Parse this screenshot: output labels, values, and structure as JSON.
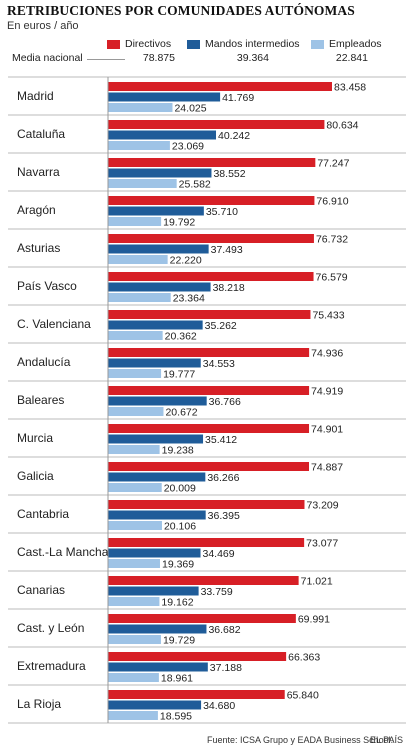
{
  "header": {
    "title": "RETRIBUCIONES POR COMUNIDADES AUTÓNOMAS",
    "subtitle": "En euros / año"
  },
  "legend": [
    {
      "name": "Directivos",
      "color": "#d71f26"
    },
    {
      "name": "Mandos intermedios",
      "color": "#1f5c99"
    },
    {
      "name": "Empleados",
      "color": "#9ec3e6"
    }
  ],
  "media_nacional": {
    "label": "Media nacional",
    "values": [
      "78.875",
      "39.364",
      "22.841"
    ]
  },
  "chart_data": {
    "type": "bar",
    "orientation": "horizontal",
    "title": "RETRIBUCIONES POR COMUNIDADES AUTÓNOMAS",
    "subtitle": "En euros / año",
    "categories": [
      "Madrid",
      "Cataluña",
      "Navarra",
      "Aragón",
      "Asturias",
      "País Vasco",
      "C. Valenciana",
      "Andalucía",
      "Baleares",
      "Murcia",
      "Galicia",
      "Cantabria",
      "Cast.-La Mancha",
      "Canarias",
      "Cast. y León",
      "Extremadura",
      "La Rioja"
    ],
    "series": [
      {
        "name": "Directivos",
        "color": "#d71f26",
        "values": [
          83458,
          80634,
          77247,
          76910,
          76732,
          76579,
          75433,
          74936,
          74919,
          74901,
          74887,
          73209,
          73077,
          71021,
          69991,
          66363,
          65840
        ],
        "labels": [
          "83.458",
          "80.634",
          "77.247",
          "76.910",
          "76.732",
          "76.579",
          "75.433",
          "74.936",
          "74.919",
          "74.901",
          "74.887",
          "73.209",
          "73.077",
          "71.021",
          "69.991",
          "66.363",
          "65.840"
        ]
      },
      {
        "name": "Mandos intermedios",
        "color": "#1f5c99",
        "values": [
          41769,
          40242,
          38552,
          35710,
          37493,
          38218,
          35262,
          34553,
          36766,
          35412,
          36266,
          36395,
          34469,
          33759,
          36682,
          37188,
          34680
        ],
        "labels": [
          "41.769",
          "40.242",
          "38.552",
          "35.710",
          "37.493",
          "38.218",
          "35.262",
          "34.553",
          "36.766",
          "35.412",
          "36.266",
          "36.395",
          "34.469",
          "33.759",
          "36.682",
          "37.188",
          "34.680"
        ]
      },
      {
        "name": "Empleados",
        "color": "#9ec3e6",
        "values": [
          24025,
          23069,
          25582,
          19792,
          22220,
          23364,
          20362,
          19777,
          20672,
          19238,
          20009,
          20106,
          19369,
          19162,
          19729,
          18961,
          18595
        ],
        "labels": [
          "24.025",
          "23.069",
          "25.582",
          "19.792",
          "22.220",
          "23.364",
          "20.362",
          "19.777",
          "20.672",
          "19.238",
          "20.009",
          "20.106",
          "19.369",
          "19.162",
          "19.729",
          "18.961",
          "18.595"
        ]
      }
    ],
    "xlim": [
      0,
      83458
    ],
    "grid": false,
    "legend_position": "top"
  },
  "footer": {
    "source": "Fuente: ICSA Grupo y EADA Business School.",
    "credit": "EL PAÍS"
  }
}
